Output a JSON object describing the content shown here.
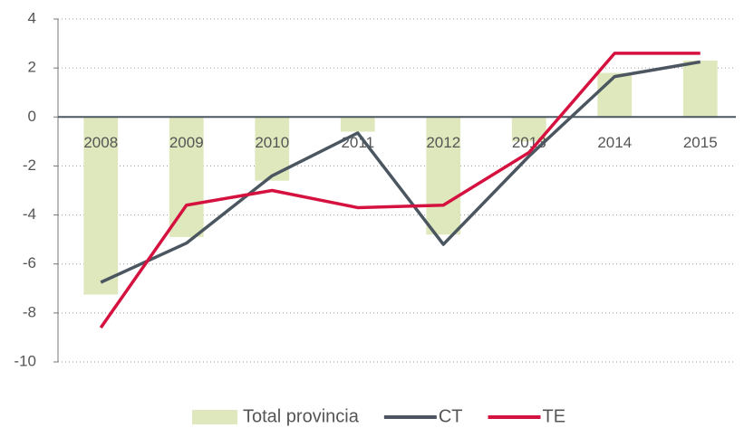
{
  "chart_data": {
    "type": "bar-line",
    "categories": [
      "2008",
      "2009",
      "2010",
      "2011",
      "2012",
      "2013",
      "2014",
      "2015"
    ],
    "series": [
      {
        "name": "Total provincia",
        "type": "bar",
        "color": "#dfe8bd",
        "values": [
          -7.25,
          -4.9,
          -2.6,
          -0.6,
          -4.8,
          -1.0,
          1.8,
          2.3
        ]
      },
      {
        "name": "CT",
        "type": "line",
        "color": "#4b5661",
        "values": [
          -6.75,
          -5.15,
          -2.4,
          -0.65,
          -5.2,
          -1.6,
          1.65,
          2.25
        ]
      },
      {
        "name": "TE",
        "type": "line",
        "color": "#d5123f",
        "values": [
          -8.6,
          -3.6,
          -3.0,
          -3.7,
          -3.6,
          -1.45,
          2.6,
          2.6
        ]
      }
    ],
    "ylim": [
      -10,
      4
    ],
    "yticks": [
      -10,
      -8,
      -6,
      -4,
      -2,
      0,
      2,
      4
    ],
    "grid": true
  }
}
